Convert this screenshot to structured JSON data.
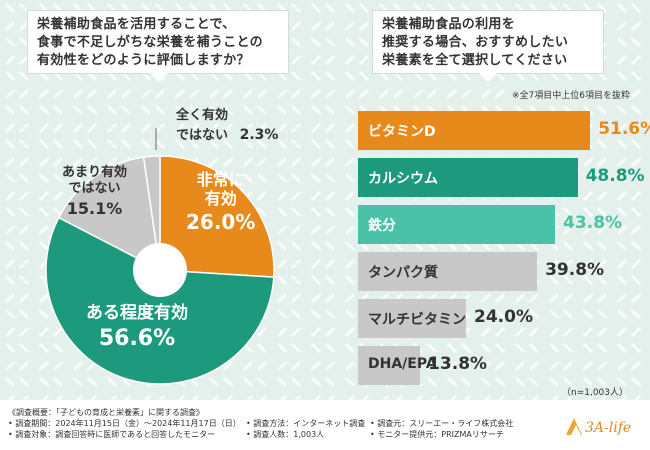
{
  "colors": {
    "orange": "#e8891c",
    "teal": "#1d9a7d",
    "mint": "#4bc1a7",
    "gray": "#c8c8c8",
    "white": "#ffffff",
    "text_dark": "#333333"
  },
  "left_question": [
    "栄養補助食品を活用することで、",
    "食事で不足しがちな栄養を補うことの",
    "有効性をどのように評価しますか？"
  ],
  "right_question": [
    "栄養補助食品の利用を",
    "推奨する場合、おすすめしたい",
    "栄養素を全て選択してください"
  ],
  "note": "※全7項目中上位6項目を抜粋",
  "n_label": "（n=1,003人）",
  "chart_data": [
    {
      "type": "pie",
      "title": "栄養補助食品を活用することで、食事で不足しがちな栄養を補うことの有効性をどのように評価しますか？",
      "slices": [
        {
          "label": "非常に有効",
          "line1": "非常に",
          "line2": "有効",
          "value": 26.0,
          "value_text": "26.0%",
          "color": "#e8891c"
        },
        {
          "label": "ある程度有効",
          "line1": "ある程度有効",
          "line2": "",
          "value": 56.6,
          "value_text": "56.6%",
          "color": "#1d9a7d"
        },
        {
          "label": "あまり有効ではない",
          "line1": "あまり有効",
          "line2": "ではない",
          "value": 15.1,
          "value_text": "15.1%",
          "color": "#c8c8c8"
        },
        {
          "label": "全く有効ではない",
          "line1": "全く有効",
          "line2": "ではない",
          "value": 2.3,
          "value_text": "2.3%",
          "color": "#c8c8c8"
        }
      ]
    },
    {
      "type": "bar",
      "orientation": "horizontal",
      "title": "栄養補助食品の利用を推奨する場合、おすすめしたい栄養素を全て選択してください",
      "xlim": [
        0,
        60
      ],
      "bars": [
        {
          "label": "ビタミンD",
          "value": 51.6,
          "value_text": "51.6%",
          "color": "#e8891c"
        },
        {
          "label": "カルシウム",
          "value": 48.8,
          "value_text": "48.8%",
          "color": "#1d9a7d"
        },
        {
          "label": "鉄分",
          "value": 43.8,
          "value_text": "43.8%",
          "color": "#4bc1a7"
        },
        {
          "label": "タンパク質",
          "value": 39.8,
          "value_text": "39.8%",
          "color": "#c8c8c8"
        },
        {
          "label": "マルチビタミン",
          "value": 24.0,
          "value_text": "24.0%",
          "color": "#c8c8c8"
        },
        {
          "label": "DHA/EPA",
          "value": 13.8,
          "value_text": "13.8%",
          "color": "#c8c8c8"
        }
      ]
    }
  ],
  "footer": {
    "col1": [
      "《調査概要：「子どもの育成と栄養素」に関する調査》",
      "• 調査期間：2024年11月15日（金）〜2024年11月17日（日）",
      "• 調査対象：調査回答時に医師であると回答したモニター"
    ],
    "col2": [
      "• 調査方法：インターネット調査",
      "• 調査人数：1,003人"
    ],
    "col3": [
      "• 調査元：スリーエー・ライフ株式会社",
      "• モニター提供元：PRIZMAリサーチ"
    ],
    "logo_text": "3A-life"
  }
}
